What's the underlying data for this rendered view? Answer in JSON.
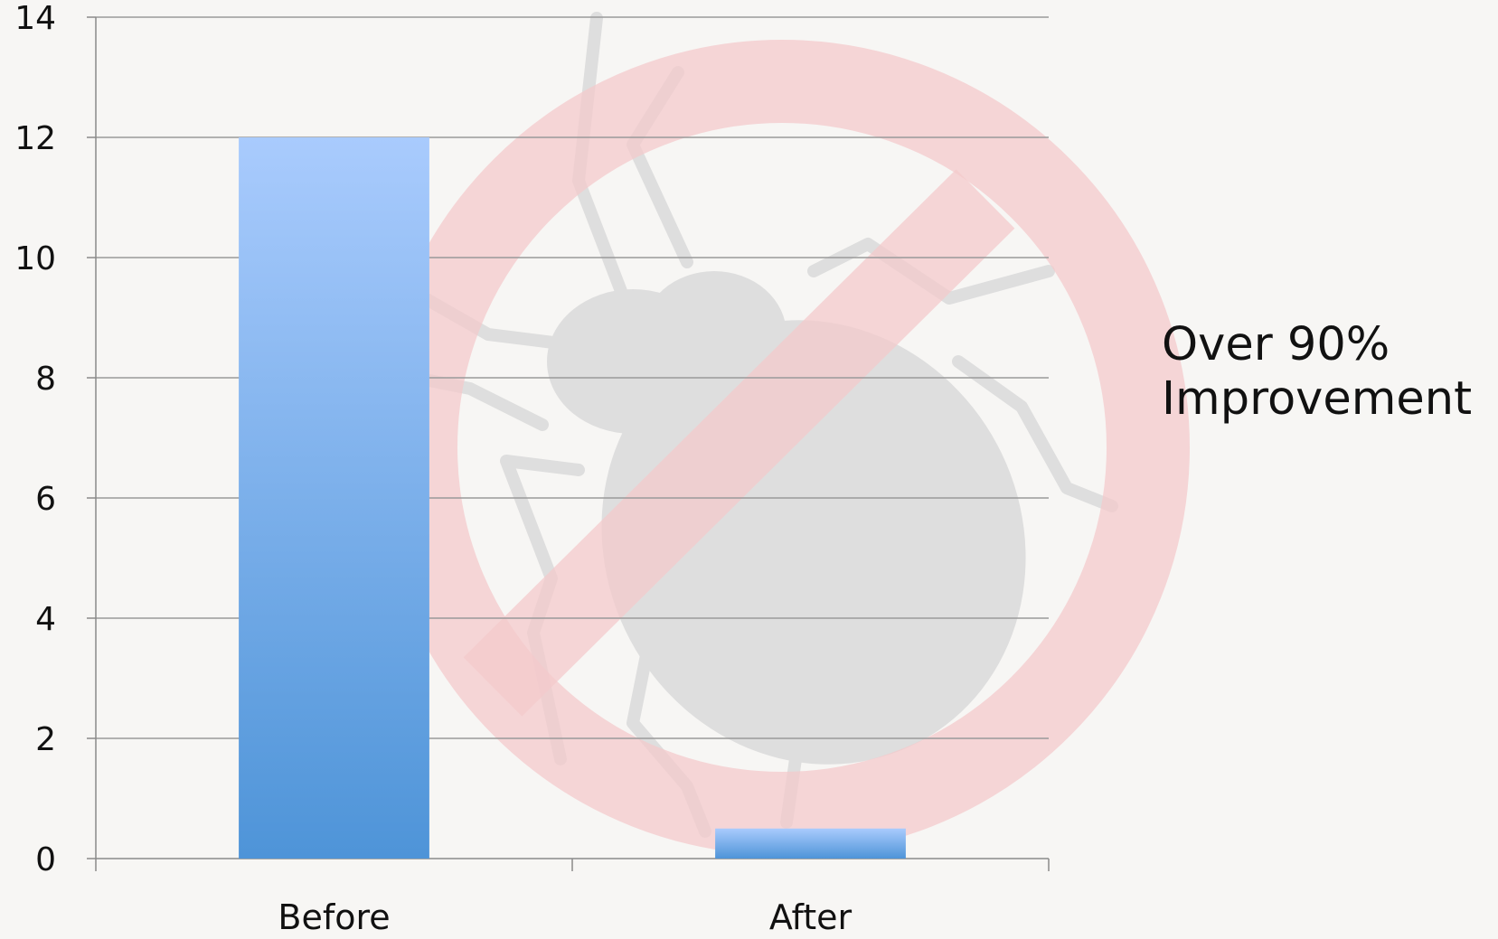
{
  "chart_data": {
    "type": "bar",
    "categories": [
      "Before",
      "After"
    ],
    "values": [
      12,
      0.5
    ],
    "title": "",
    "xlabel": "",
    "ylabel": "",
    "ylim": [
      0,
      14
    ],
    "yticks": [
      0,
      2,
      4,
      6,
      8,
      10,
      12,
      14
    ],
    "grid": true,
    "bar_colors": {
      "top": "#a9cbfd",
      "bottom": "#4e94d8"
    },
    "annotation": {
      "lines": [
        "Over 90%",
        "Improvement"
      ]
    }
  },
  "background": {
    "watermark_icon": "no-bedbug-icon",
    "ring_color": "#f4c6c8",
    "bug_color": "#d9d9d9"
  }
}
